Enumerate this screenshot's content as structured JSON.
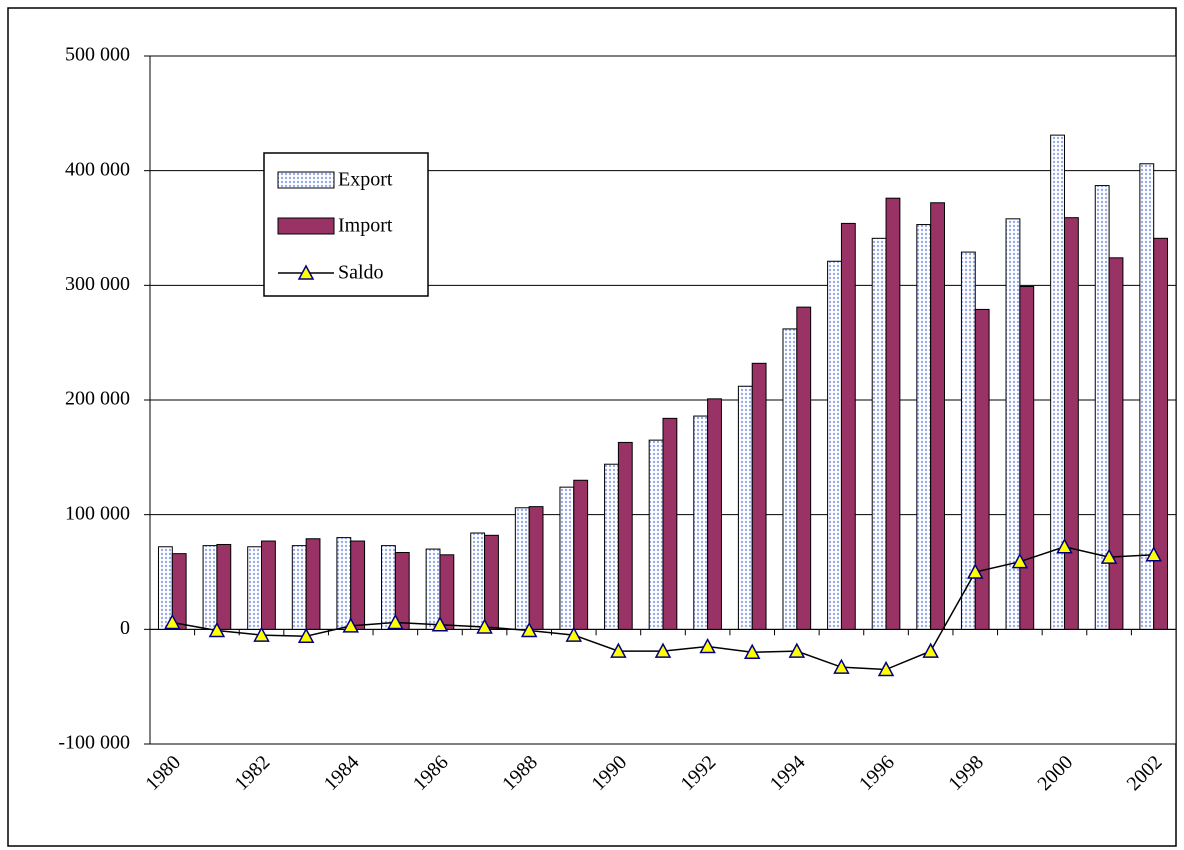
{
  "chart_data": {
    "type": "bar",
    "categories": [
      "1980",
      null,
      "1982",
      null,
      "1984",
      null,
      "1986",
      null,
      "1988",
      null,
      "1990",
      null,
      "1992",
      null,
      "1994",
      null,
      "1996",
      null,
      "1998",
      null,
      "2000",
      null,
      "2002"
    ],
    "series": [
      {
        "name": "Export",
        "color": "#99aaee",
        "values": [
          72000,
          73000,
          72000,
          73000,
          80000,
          73000,
          70000,
          84000,
          106000,
          124000,
          144000,
          165000,
          186000,
          212000,
          262000,
          321000,
          341000,
          353000,
          329000,
          358000,
          431000,
          387000,
          406000
        ]
      },
      {
        "name": "Import",
        "color": "#993366",
        "values": [
          66000,
          74000,
          77000,
          79000,
          77000,
          67000,
          65000,
          82000,
          107000,
          130000,
          163000,
          184000,
          201000,
          232000,
          281000,
          354000,
          376000,
          372000,
          279000,
          299000,
          359000,
          324000,
          341000
        ]
      },
      {
        "name": "Saldo",
        "type": "line",
        "color": "#000000",
        "marker_color": "#ffff00",
        "values": [
          6000,
          -1000,
          -5000,
          -6000,
          3000,
          6000,
          4000,
          2000,
          -1000,
          -5000,
          -19000,
          -19000,
          -15000,
          -20000,
          -19000,
          -33000,
          -35000,
          -19000,
          50000,
          59000,
          72000,
          63000,
          65000
        ]
      }
    ],
    "ylim": [
      -100000,
      500000
    ],
    "yticks": [
      {
        "value": -100000,
        "label": "-100 000"
      },
      0,
      {
        "value": 100000,
        "label": "100 000"
      },
      {
        "value": 200000,
        "label": "200 000"
      },
      {
        "value": 300000,
        "label": "300 000"
      },
      {
        "value": 400000,
        "label": "400 000"
      },
      {
        "value": 500000,
        "label": "500 000"
      }
    ],
    "grid": true,
    "legend": "upper left"
  }
}
